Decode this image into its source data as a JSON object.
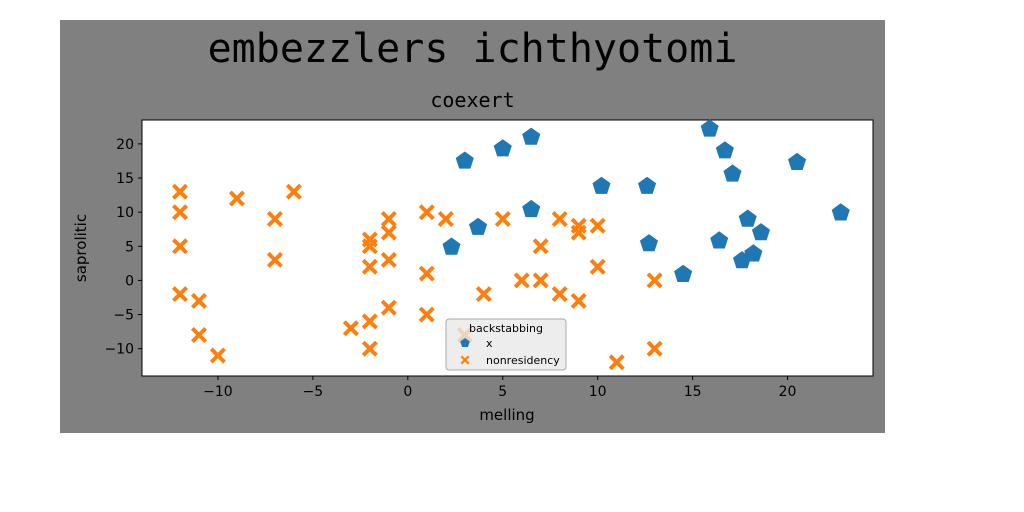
{
  "chart_data": {
    "type": "scatter",
    "suptitle": "embezzlers ichthyotomi",
    "title": "coexert",
    "xlabel": "melling",
    "ylabel": "saprolitic",
    "xlim": [
      -14,
      24.5
    ],
    "ylim": [
      -14,
      23.5
    ],
    "xticks": [
      -10,
      -5,
      0,
      5,
      10,
      15,
      20
    ],
    "yticks": [
      -10,
      -5,
      0,
      5,
      10,
      15,
      20
    ],
    "legend": {
      "title": "backstabbing",
      "placement": "lower center"
    },
    "series": [
      {
        "name": "x",
        "marker": "pentagon",
        "color": "#1f77b4",
        "points": [
          [
            3,
            17.5
          ],
          [
            5,
            19.3
          ],
          [
            6.5,
            21
          ],
          [
            15.9,
            22.2
          ],
          [
            16.7,
            19
          ],
          [
            17.1,
            15.6
          ],
          [
            20.5,
            17.3
          ],
          [
            10.2,
            13.8
          ],
          [
            12.6,
            13.8
          ],
          [
            6.5,
            10.4
          ],
          [
            3.7,
            7.8
          ],
          [
            2.3,
            4.9
          ],
          [
            12.7,
            5.4
          ],
          [
            16.4,
            5.8
          ],
          [
            17.9,
            9
          ],
          [
            18.6,
            7
          ],
          [
            17.6,
            2.9
          ],
          [
            18.2,
            3.9
          ],
          [
            14.5,
            0.9
          ],
          [
            22.8,
            9.9
          ]
        ]
      },
      {
        "name": "nonresidency",
        "marker": "X",
        "color": "#ff7f0e",
        "points": [
          [
            -12,
            13
          ],
          [
            -12,
            10
          ],
          [
            -12,
            5
          ],
          [
            -12,
            -2
          ],
          [
            -11,
            -3
          ],
          [
            -11,
            -8
          ],
          [
            -10,
            -11
          ],
          [
            -9,
            12
          ],
          [
            -7,
            9
          ],
          [
            -7,
            3
          ],
          [
            -6,
            13
          ],
          [
            -3,
            -7
          ],
          [
            -2,
            6
          ],
          [
            -2,
            5
          ],
          [
            -2,
            2
          ],
          [
            -2,
            -6
          ],
          [
            -2,
            -10
          ],
          [
            -1,
            9
          ],
          [
            -1,
            7
          ],
          [
            -1,
            3
          ],
          [
            -1,
            -4
          ],
          [
            1,
            10
          ],
          [
            1,
            1
          ],
          [
            1,
            -5
          ],
          [
            2,
            9
          ],
          [
            3,
            -8
          ],
          [
            4,
            -2
          ],
          [
            5,
            9
          ],
          [
            6,
            0
          ],
          [
            7,
            5
          ],
          [
            7,
            0
          ],
          [
            8,
            9
          ],
          [
            8,
            -2
          ],
          [
            9,
            8
          ],
          [
            9,
            7
          ],
          [
            9,
            -3
          ],
          [
            10,
            8
          ],
          [
            10,
            2
          ],
          [
            11,
            -12
          ],
          [
            13,
            0
          ],
          [
            13,
            -10
          ]
        ]
      }
    ]
  }
}
